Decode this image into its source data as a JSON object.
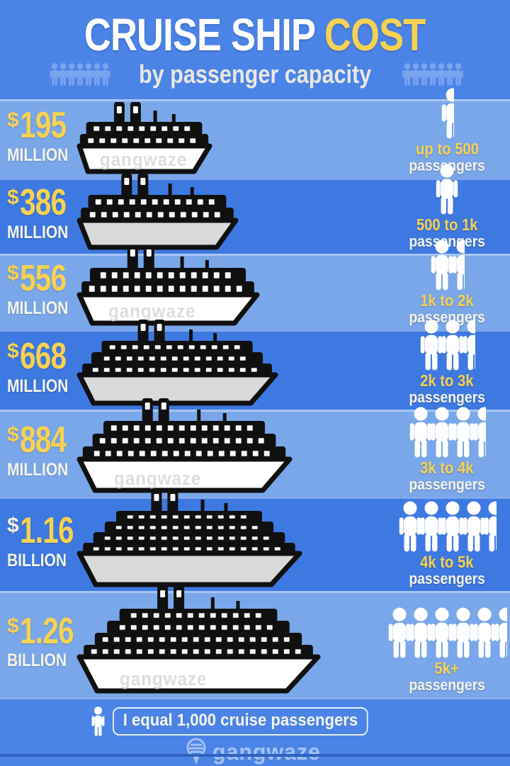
{
  "header": {
    "title_main": "CRUISE SHIP",
    "title_accent": "COST",
    "subtitle": "by passenger capacity",
    "icon_group_count": 7
  },
  "rows": [
    {
      "price_prefix": "$",
      "price_value": "195",
      "price_unit": "MILLION",
      "capacity": "up to 500",
      "capacity_suffix": "passengers",
      "person_icons": 0.5,
      "watermark": "gangwaze",
      "prefix_style": "yellow"
    },
    {
      "price_prefix": "$",
      "price_value": "386",
      "price_unit": "MILLION",
      "capacity": "500 to 1k",
      "capacity_suffix": "passengers",
      "person_icons": 1,
      "watermark": "",
      "prefix_style": "yellow"
    },
    {
      "price_prefix": "$",
      "price_value": "556",
      "price_unit": "MILLION",
      "capacity": "1k to 2k",
      "capacity_suffix": "passengers",
      "person_icons": 1.5,
      "watermark": "gangwaze",
      "prefix_style": "yellow"
    },
    {
      "price_prefix": "$",
      "price_value": "668",
      "price_unit": "MILLION",
      "capacity": "2k to 3k",
      "capacity_suffix": "passengers",
      "person_icons": 2.5,
      "watermark": "",
      "prefix_style": "yellow"
    },
    {
      "price_prefix": "$",
      "price_value": "884",
      "price_unit": "MILLION",
      "capacity": "3k to 4k",
      "capacity_suffix": "passengers",
      "person_icons": 3.5,
      "watermark": "gangwaze",
      "prefix_style": "yellow"
    },
    {
      "price_prefix": "$",
      "price_value": "1.16",
      "price_unit": "BILLION",
      "capacity": "4k to 5k",
      "capacity_suffix": "passengers",
      "person_icons": 4.5,
      "watermark": "",
      "prefix_style": "white"
    },
    {
      "price_prefix": "$",
      "price_value": "1.26",
      "price_unit": "BILLION",
      "capacity": "5k+",
      "capacity_suffix": "passengers",
      "person_icons": 5.5,
      "watermark": "gangwaze",
      "prefix_style": "yellow"
    }
  ],
  "legend": {
    "text": "I equal 1,000 cruise passengers"
  },
  "brand": {
    "name": "gangwaze"
  },
  "colors": {
    "accent_yellow": "#f6d254",
    "header_bg": "#4b83e6",
    "row_light": "#7aa7ea",
    "row_dark": "#3e79e1",
    "hull_light": "#ffffff",
    "hull_dark": "#d9d9d9",
    "person_white": "#ffffff",
    "header_person_blue": "#86adf0"
  },
  "chart_data": {
    "type": "bar",
    "title": "Cruise Ship Cost by passenger capacity",
    "categories": [
      "up to 500",
      "500 to 1k",
      "1k to 2k",
      "2k to 3k",
      "3k to 4k",
      "4k to 5k",
      "5k+"
    ],
    "values": [
      195,
      386,
      556,
      668,
      884,
      1160,
      1260
    ],
    "value_unit": "million USD",
    "value_labels": [
      "$195 MILLION",
      "$386 MILLION",
      "$556 MILLION",
      "$668 MILLION",
      "$884 MILLION",
      "$1.16 BILLION",
      "$1.26 BILLION"
    ],
    "pictogram_unit": "1 person icon = 1,000 cruise passengers",
    "person_icons_per_row": [
      0.5,
      1,
      1.5,
      2.5,
      3.5,
      4.5,
      5.5
    ],
    "xlabel": "passenger capacity",
    "ylabel": "cost",
    "legend_position": "bottom",
    "grid": false
  }
}
